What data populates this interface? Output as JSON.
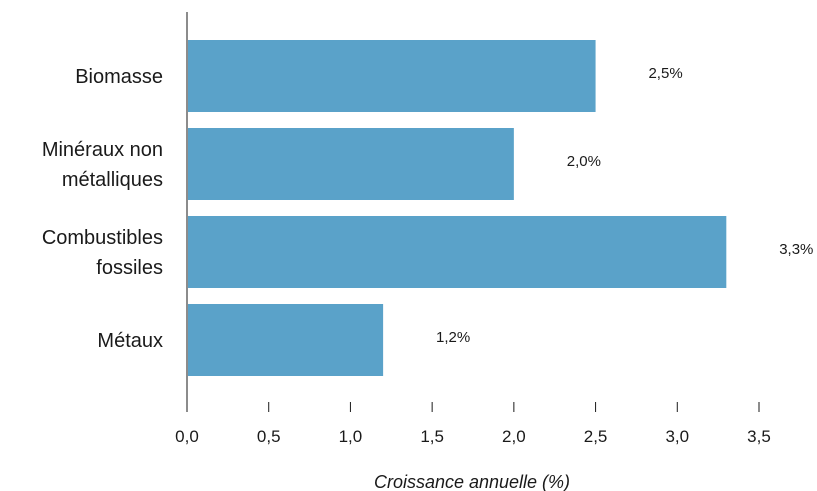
{
  "chart_data": {
    "type": "bar",
    "orientation": "horizontal",
    "categories": [
      [
        "Biomasse"
      ],
      [
        "Minéraux non",
        "métalliques"
      ],
      [
        "Combustibles",
        "fossiles"
      ],
      [
        "Métaux"
      ]
    ],
    "values": [
      2.5,
      2.0,
      3.3,
      1.2
    ],
    "value_labels": [
      "2,5%",
      "2,0%",
      "3,3%",
      "1,2%"
    ],
    "xlabel": "Croissance annuelle (%)",
    "ylabel": "",
    "title": "",
    "xlim": [
      0,
      3.5
    ],
    "xticks": [
      0,
      0.5,
      1.0,
      1.5,
      2.0,
      2.5,
      3.0,
      3.5
    ],
    "xtick_labels": [
      "0,0",
      "0,5",
      "1,0",
      "1,5",
      "2,0",
      "2,5",
      "3,0",
      "3,5"
    ],
    "grid": false,
    "legend": "none",
    "colors": {
      "bar": "#5aa2c9",
      "text": "#1a1a1a"
    }
  }
}
